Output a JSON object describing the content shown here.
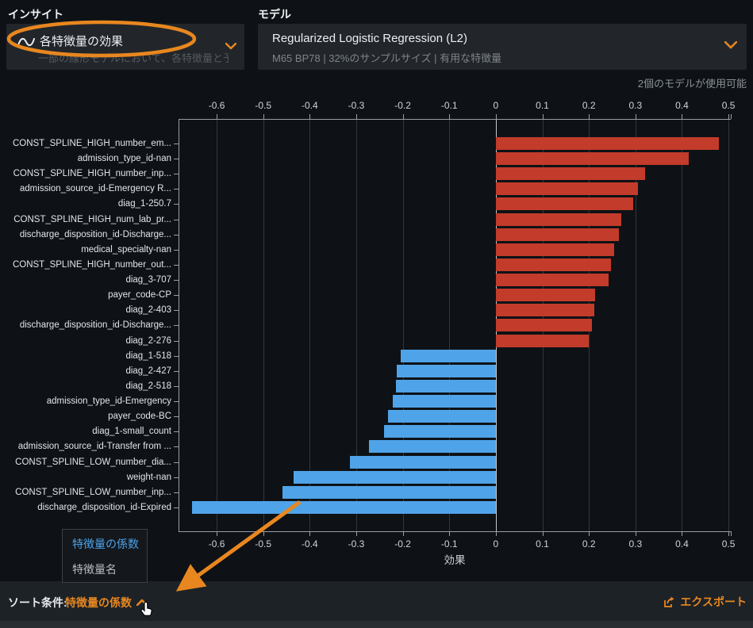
{
  "insight": {
    "section_label": "インサイト",
    "selected": "各特徴量の効果",
    "description": "一部の線形モデルにおいて、各特徴量と予測...",
    "icon": "sine-wave-icon"
  },
  "model": {
    "section_label": "モデル",
    "selected": "Regularized Logistic Regression (L2)",
    "subtitle": "M65 BP78 | 32%のサンプルサイズ | 有用な特徴量",
    "availability_note": "2個のモデルが使用可能"
  },
  "chart_data": {
    "type": "bar",
    "orientation": "horizontal",
    "xlabel": "効果",
    "xlim": [
      -0.682,
      0.505
    ],
    "x_ticks": [
      -0.6,
      -0.5,
      -0.4,
      -0.3,
      -0.2,
      -0.1,
      0,
      0.1,
      0.2,
      0.3,
      0.4,
      0.5
    ],
    "grid": true,
    "positive_color": "#c23b2b",
    "negative_color": "#4fa3e8",
    "categories": [
      "CONST_SPLINE_HIGH_number_em...",
      "admission_type_id-nan",
      "CONST_SPLINE_HIGH_number_inp...",
      "admission_source_id-Emergency R...",
      "diag_1-250.7",
      "CONST_SPLINE_HIGH_num_lab_pr...",
      "discharge_disposition_id-Discharge...",
      "medical_specialty-nan",
      "CONST_SPLINE_HIGH_number_out...",
      "diag_3-707",
      "payer_code-CP",
      "diag_2-403",
      "discharge_disposition_id-Discharge...",
      "diag_2-276",
      "diag_1-518",
      "diag_2-427",
      "diag_2-518",
      "admission_type_id-Emergency",
      "payer_code-BC",
      "diag_1-small_count",
      "admission_source_id-Transfer from ...",
      "CONST_SPLINE_LOW_number_dia...",
      "weight-nan",
      "CONST_SPLINE_LOW_number_inp...",
      "discharge_disposition_id-Expired"
    ],
    "values": [
      0.48,
      0.415,
      0.32,
      0.305,
      0.295,
      0.27,
      0.265,
      0.255,
      0.247,
      0.243,
      0.213,
      0.212,
      0.206,
      0.2,
      -0.205,
      -0.213,
      -0.214,
      -0.221,
      -0.232,
      -0.24,
      -0.272,
      -0.313,
      -0.435,
      -0.459,
      -0.653
    ]
  },
  "sort_menu": {
    "options": [
      {
        "label": "特徴量の係数",
        "selected": true
      },
      {
        "label": "特徴量名",
        "selected": false
      }
    ]
  },
  "sort_bar": {
    "label": "ソート条件:",
    "value": "特徴量の係数"
  },
  "export_label": "エクスポート",
  "icons": {
    "insight_type": "sine-wave-icon",
    "insight_expand": "chevron-down-icon",
    "model_expand": "chevron-down-icon",
    "sort_collapse": "chevron-up-icon",
    "export": "export-icon",
    "cursor": "hand-pointer-cursor"
  },
  "colors": {
    "accent_orange": "#e8871f",
    "positive_bar": "#c23b2b",
    "negative_bar": "#4fa3e8",
    "selected_menu_item": "#4da2e8",
    "background": "#0e1216",
    "panel": "#22262b",
    "sortbar": "#1d2226"
  },
  "annotations": {
    "highlight_ellipse": "insight-selector",
    "arrow_points_to": "sort-dropdown"
  }
}
